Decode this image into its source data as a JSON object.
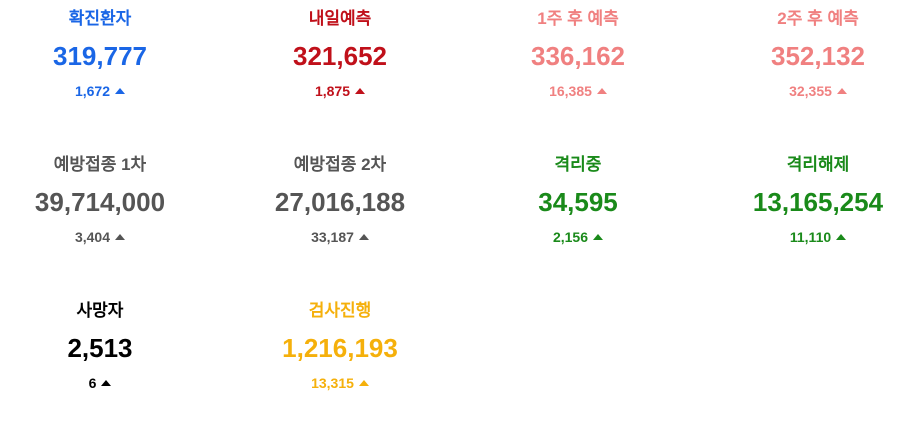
{
  "stats": [
    {
      "label": "확진환자",
      "value": "319,777",
      "delta": "1,672",
      "color": "#1a66e6"
    },
    {
      "label": "내일예측",
      "value": "321,652",
      "delta": "1,875",
      "color": "#c0101a"
    },
    {
      "label": "1주 후 예측",
      "value": "336,162",
      "delta": "16,385",
      "color": "#f08080"
    },
    {
      "label": "2주 후 예측",
      "value": "352,132",
      "delta": "32,355",
      "color": "#f08080"
    },
    {
      "label": "예방접종 1차",
      "value": "39,714,000",
      "delta": "3,404",
      "color": "#555555"
    },
    {
      "label": "예방접종 2차",
      "value": "27,016,188",
      "delta": "33,187",
      "color": "#555555"
    },
    {
      "label": "격리중",
      "value": "34,595",
      "delta": "2,156",
      "color": "#1a8a1a"
    },
    {
      "label": "격리해제",
      "value": "13,165,254",
      "delta": "11,110",
      "color": "#1a8a1a"
    },
    {
      "label": "사망자",
      "value": "2,513",
      "delta": "6",
      "color": "#000000"
    },
    {
      "label": "검사진행",
      "value": "1,216,193",
      "delta": "13,315",
      "color": "#f5b00b"
    }
  ],
  "icons": {
    "increase": "triangle-up-icon"
  }
}
